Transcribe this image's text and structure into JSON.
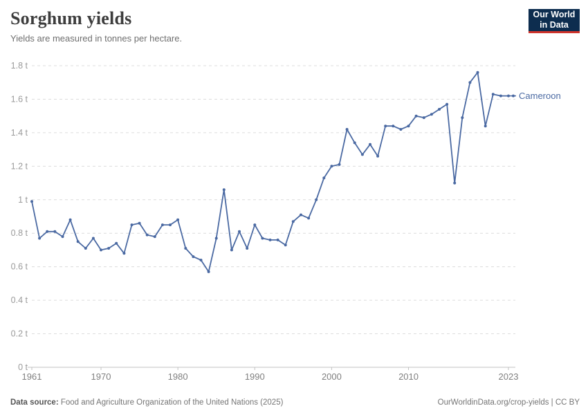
{
  "header": {
    "title": "Sorghum yields",
    "subtitle": "Yields are measured in tonnes per hectare."
  },
  "logo": {
    "line1": "Our World",
    "line2": "in Data",
    "bg_color": "#0d2d4f",
    "accent_color": "#d0342c"
  },
  "chart_data": {
    "type": "line",
    "title": "Sorghum yields",
    "unit": "t",
    "xlabel": "",
    "ylabel": "tonnes per hectare",
    "xlim": [
      1961,
      2023
    ],
    "ylim": [
      0,
      1.8
    ],
    "x_ticks": [
      1961,
      1970,
      1980,
      1990,
      2000,
      2010,
      2023
    ],
    "y_ticks": [
      0,
      0.2,
      0.4,
      0.6,
      0.8,
      1,
      1.2,
      1.4,
      1.6,
      1.8
    ],
    "grid": "horizontal-dashed",
    "legend_position": "end-of-line-label",
    "series": [
      {
        "name": "Cameroon",
        "color": "#4a69a2",
        "points": [
          [
            1961,
            0.99
          ],
          [
            1962,
            0.77
          ],
          [
            1963,
            0.81
          ],
          [
            1964,
            0.81
          ],
          [
            1965,
            0.78
          ],
          [
            1966,
            0.88
          ],
          [
            1967,
            0.75
          ],
          [
            1968,
            0.71
          ],
          [
            1969,
            0.77
          ],
          [
            1970,
            0.7
          ],
          [
            1971,
            0.71
          ],
          [
            1972,
            0.74
          ],
          [
            1973,
            0.68
          ],
          [
            1974,
            0.85
          ],
          [
            1975,
            0.86
          ],
          [
            1976,
            0.79
          ],
          [
            1977,
            0.78
          ],
          [
            1978,
            0.85
          ],
          [
            1979,
            0.85
          ],
          [
            1980,
            0.88
          ],
          [
            1981,
            0.71
          ],
          [
            1982,
            0.66
          ],
          [
            1983,
            0.64
          ],
          [
            1984,
            0.57
          ],
          [
            1985,
            0.77
          ],
          [
            1986,
            1.06
          ],
          [
            1987,
            0.7
          ],
          [
            1988,
            0.81
          ],
          [
            1989,
            0.71
          ],
          [
            1990,
            0.85
          ],
          [
            1991,
            0.77
          ],
          [
            1992,
            0.76
          ],
          [
            1993,
            0.76
          ],
          [
            1994,
            0.73
          ],
          [
            1995,
            0.87
          ],
          [
            1996,
            0.91
          ],
          [
            1997,
            0.89
          ],
          [
            1998,
            1.0
          ],
          [
            1999,
            1.13
          ],
          [
            2000,
            1.2
          ],
          [
            2001,
            1.21
          ],
          [
            2002,
            1.42
          ],
          [
            2003,
            1.34
          ],
          [
            2004,
            1.27
          ],
          [
            2005,
            1.33
          ],
          [
            2006,
            1.26
          ],
          [
            2007,
            1.44
          ],
          [
            2008,
            1.44
          ],
          [
            2009,
            1.42
          ],
          [
            2010,
            1.44
          ],
          [
            2011,
            1.5
          ],
          [
            2012,
            1.49
          ],
          [
            2013,
            1.51
          ],
          [
            2014,
            1.54
          ],
          [
            2015,
            1.57
          ],
          [
            2016,
            1.1
          ],
          [
            2017,
            1.49
          ],
          [
            2018,
            1.7
          ],
          [
            2019,
            1.76
          ],
          [
            2020,
            1.44
          ],
          [
            2021,
            1.63
          ],
          [
            2022,
            1.62
          ],
          [
            2023,
            1.62
          ]
        ]
      }
    ],
    "colors": {
      "gridline": "#dcdcdc",
      "axis_line": "#c2c2c2",
      "y_tick_label": "#9a9a9a",
      "x_tick_label": "#7f7f7f"
    }
  },
  "footer": {
    "source_label": "Data source:",
    "source_text": " Food and Agriculture Organization of the United Nations (2025)",
    "credit": "OurWorldinData.org/crop-yields | CC BY"
  }
}
